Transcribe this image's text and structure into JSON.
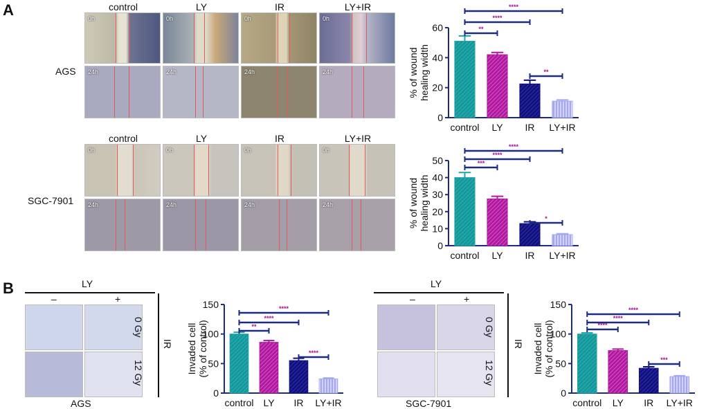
{
  "panel_a": {
    "letter": "A",
    "groups": [
      "control",
      "LY",
      "IR",
      "LY+IR"
    ],
    "rows": [
      {
        "cell_line": "AGS",
        "times": [
          "0h",
          "24h"
        ]
      },
      {
        "cell_line": "SGC-7901",
        "times": [
          "0h",
          "24h"
        ]
      }
    ]
  },
  "panel_b": {
    "letter": "B",
    "ly_label": "LY",
    "ly_minus": "–",
    "ly_plus": "+",
    "ir_label": "IR",
    "doses": [
      "0 Gy",
      "12 Gy"
    ],
    "cell_lines": [
      "AGS",
      "SGC-7901"
    ]
  },
  "colors": {
    "teal": "#1fa5a8",
    "magenta": "#b0199e",
    "navy": "#10107e",
    "lavender": "#a4a6f2",
    "axis": "#1c2a80",
    "star": "#a01090"
  },
  "chart_data": [
    {
      "type": "bar",
      "id": "a-ags",
      "categories": [
        "control",
        "LY",
        "IR",
        "LY+IR"
      ],
      "values": [
        51,
        42,
        22.5,
        11
      ],
      "errors": [
        3.5,
        1.5,
        2.5,
        0.8
      ],
      "ylabel": "% of wound healing width",
      "ylabel_lines": [
        "% of wound",
        "healing width"
      ],
      "ylim": [
        0,
        60
      ],
      "yticks": [
        0,
        20,
        40,
        60
      ],
      "tick_labels": [
        "0",
        "20",
        "40",
        "60"
      ],
      "comparisons": [
        {
          "from": 0,
          "to": 1,
          "label": "**"
        },
        {
          "from": 0,
          "to": 2,
          "label": "****"
        },
        {
          "from": 0,
          "to": 3,
          "label": "****"
        },
        {
          "from": 2,
          "to": 3,
          "label": "**"
        }
      ]
    },
    {
      "type": "bar",
      "id": "a-sgc",
      "categories": [
        "control",
        "LY",
        "IR",
        "LY+IR"
      ],
      "values": [
        40,
        27.5,
        13,
        6.5
      ],
      "errors": [
        3,
        1.5,
        1,
        0.5
      ],
      "ylabel": "% of wound healing width",
      "ylabel_lines": [
        "% of wound",
        "healing width"
      ],
      "ylim": [
        0,
        50
      ],
      "yticks": [
        0,
        10,
        20,
        30,
        40,
        50
      ],
      "tick_labels": [
        "0",
        "10",
        "20",
        "30",
        "40",
        "50"
      ],
      "comparisons": [
        {
          "from": 0,
          "to": 1,
          "label": "***"
        },
        {
          "from": 0,
          "to": 2,
          "label": "****"
        },
        {
          "from": 0,
          "to": 3,
          "label": "****"
        },
        {
          "from": 2,
          "to": 3,
          "label": "*"
        }
      ]
    },
    {
      "type": "bar",
      "id": "b-ags",
      "categories": [
        "control",
        "LY",
        "IR",
        "LY+IR"
      ],
      "values": [
        100,
        86,
        55,
        24
      ],
      "errors": [
        3,
        3,
        4,
        1.5
      ],
      "ylabel": "Invaded cell (% of control)",
      "ylabel_lines": [
        "Invaded cell",
        "(% of control)"
      ],
      "ylim": [
        0,
        150
      ],
      "yticks": [
        0,
        50,
        100,
        150
      ],
      "tick_labels": [
        "0",
        "50",
        "100",
        "150"
      ],
      "comparisons": [
        {
          "from": 0,
          "to": 1,
          "label": "**"
        },
        {
          "from": 0,
          "to": 2,
          "label": "****"
        },
        {
          "from": 0,
          "to": 3,
          "label": "****"
        },
        {
          "from": 2,
          "to": 3,
          "label": "****"
        }
      ]
    },
    {
      "type": "bar",
      "id": "b-sgc",
      "categories": [
        "control",
        "LY",
        "IR",
        "LY+IR"
      ],
      "values": [
        100,
        72,
        42,
        28
      ],
      "errors": [
        2,
        2.5,
        2.5,
        1.5
      ],
      "ylabel": "Invaded cell (% of control)",
      "ylabel_lines": [
        "Invaded cell",
        "(% of control)"
      ],
      "ylim": [
        0,
        150
      ],
      "yticks": [
        0,
        50,
        100,
        150
      ],
      "tick_labels": [
        "0",
        "50",
        "100",
        "150"
      ],
      "comparisons": [
        {
          "from": 0,
          "to": 1,
          "label": "****"
        },
        {
          "from": 0,
          "to": 2,
          "label": "****"
        },
        {
          "from": 0,
          "to": 3,
          "label": "****"
        },
        {
          "from": 2,
          "to": 3,
          "label": "***"
        }
      ]
    }
  ]
}
